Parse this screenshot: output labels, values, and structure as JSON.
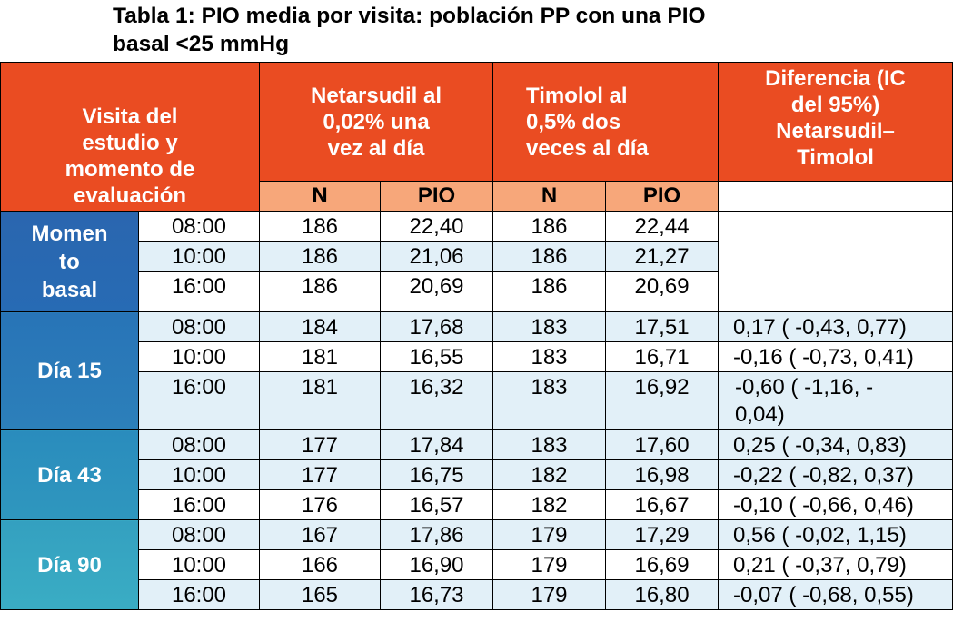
{
  "title": {
    "line1": "Tabla 1: PIO media por visita: población PP con una PIO",
    "line2": "basal <25 mmHg"
  },
  "headers": {
    "visit": [
      "Visita del",
      "estudio y",
      "momento de",
      "evaluación"
    ],
    "netarsudil": [
      "Netarsudil al",
      "0,02% una",
      "vez al día"
    ],
    "timolol": [
      "Timolol al",
      "0,5% dos",
      "veces al día"
    ],
    "difference": [
      "Diferencia (IC",
      "del 95%)",
      "Netarsudil–",
      "Timolol"
    ],
    "n_label": "N",
    "pio_label": "PIO"
  },
  "groups": [
    {
      "label_lines": [
        "Momen",
        "to",
        "basal"
      ],
      "rows": [
        {
          "time": "08:00",
          "net_n": "186",
          "net_pio": "22,40",
          "tim_n": "186",
          "tim_pio": "22,44",
          "diff": ""
        },
        {
          "time": "10:00",
          "net_n": "186",
          "net_pio": "21,06",
          "tim_n": "186",
          "tim_pio": "21,27",
          "diff": ""
        },
        {
          "time": "16:00",
          "net_n": "186",
          "net_pio": "20,69",
          "tim_n": "186",
          "tim_pio": "20,69",
          "diff": ""
        }
      ]
    },
    {
      "label_lines": [
        "Día 15"
      ],
      "rows": [
        {
          "time": "08:00",
          "net_n": "184",
          "net_pio": "17,68",
          "tim_n": "183",
          "tim_pio": "17,51",
          "diff": "0,17 ( -0,43, 0,77)"
        },
        {
          "time": "10:00",
          "net_n": "181",
          "net_pio": "16,55",
          "tim_n": "183",
          "tim_pio": "16,71",
          "diff": "-0,16 ( -0,73, 0,41)"
        },
        {
          "time": "16:00",
          "net_n": "181",
          "net_pio": "16,32",
          "tim_n": "183",
          "tim_pio": "16,92",
          "diff": "-0,60 ( -1,16, -",
          "diff_cont": "0,04)"
        }
      ]
    },
    {
      "label_lines": [
        "Día 43"
      ],
      "rows": [
        {
          "time": "08:00",
          "net_n": "177",
          "net_pio": "17,84",
          "tim_n": "183",
          "tim_pio": "17,60",
          "diff": "0,25 ( -0,34, 0,83)"
        },
        {
          "time": "10:00",
          "net_n": "177",
          "net_pio": "16,75",
          "tim_n": "182",
          "tim_pio": "16,98",
          "diff": "-0,22 ( -0,82, 0,37)"
        },
        {
          "time": "16:00",
          "net_n": "176",
          "net_pio": "16,57",
          "tim_n": "182",
          "tim_pio": "16,67",
          "diff": "-0,10 ( -0,66, 0,46)"
        }
      ]
    },
    {
      "label_lines": [
        "Día 90"
      ],
      "rows": [
        {
          "time": "08:00",
          "net_n": "167",
          "net_pio": "17,86",
          "tim_n": "179",
          "tim_pio": "17,29",
          "diff": "0,56 ( -0,02, 1,15)"
        },
        {
          "time": "10:00",
          "net_n": "166",
          "net_pio": "16,90",
          "tim_n": "179",
          "tim_pio": "16,69",
          "diff": "0,21 ( -0,37, 0,79)"
        },
        {
          "time": "16:00",
          "net_n": "165",
          "net_pio": "16,73",
          "tim_n": "179",
          "tim_pio": "16,80",
          "diff": "-0,07 ( -0,68, 0,55)"
        }
      ]
    }
  ],
  "colors": {
    "header_orange": "#ea4c22",
    "subheader_peach": "#f7a77a",
    "row_light_blue": "#e2f0f8",
    "group_blue_dark": "#2a66af",
    "group_blue_light": "#3aadc4"
  }
}
